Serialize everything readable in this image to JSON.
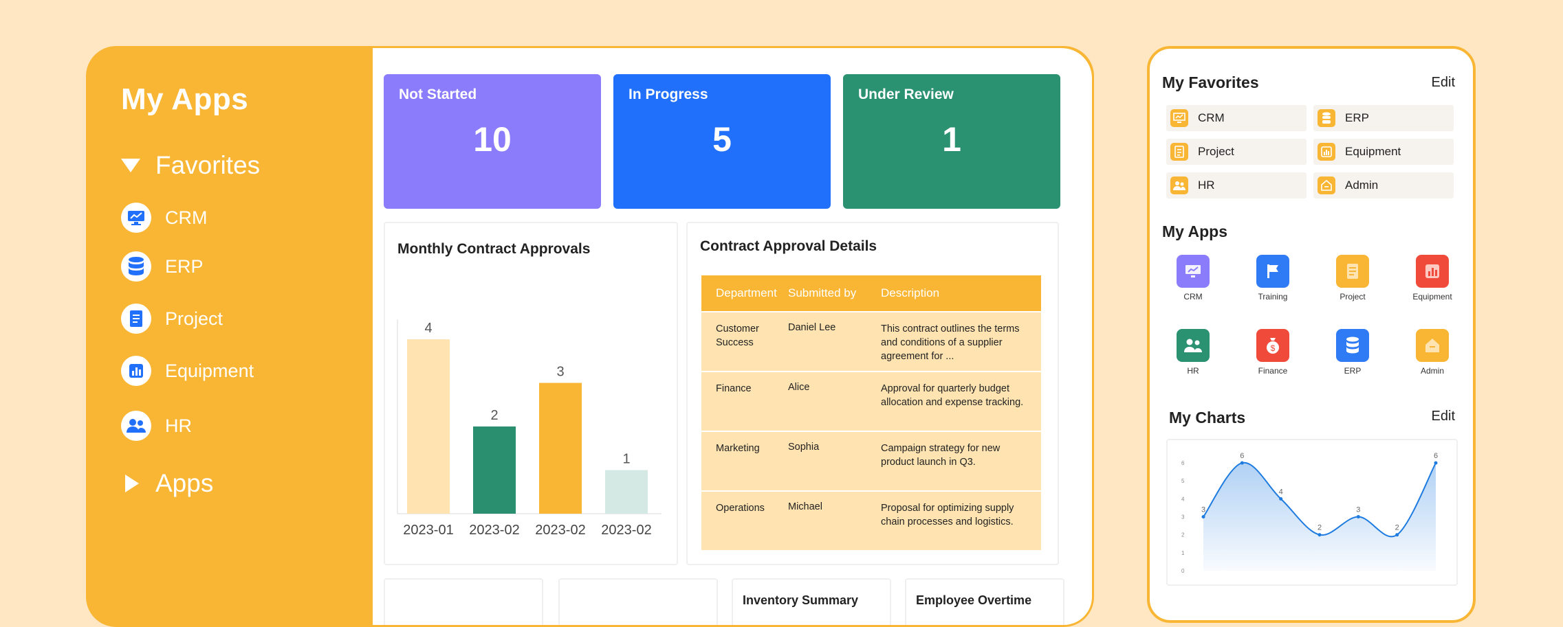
{
  "sidebar": {
    "title": "My Apps",
    "favorites_label": "Favorites",
    "apps_label": "Apps",
    "items": [
      {
        "label": "CRM",
        "icon": "monitor-chart-icon"
      },
      {
        "label": "ERP",
        "icon": "database-icon"
      },
      {
        "label": "Project",
        "icon": "document-icon"
      },
      {
        "label": "Equipment",
        "icon": "bar-chart-icon"
      },
      {
        "label": "HR",
        "icon": "users-icon"
      }
    ]
  },
  "status_cards": [
    {
      "label": "Not Started",
      "value": "10",
      "color": "#8B7CFB"
    },
    {
      "label": "In Progress",
      "value": "5",
      "color": "#2070FB"
    },
    {
      "label": "Under Review",
      "value": "1",
      "color": "#2A9270"
    }
  ],
  "monthly_chart": {
    "title": "Monthly Contract Approvals",
    "chart_data": {
      "type": "bar",
      "categories": [
        "2023-01",
        "2023-02",
        "2023-02",
        "2023-02"
      ],
      "values": [
        4,
        2,
        3,
        1
      ],
      "colors": [
        "#FFE3B0",
        "#2A8F6E",
        "#F9B634",
        "#D4E9E3"
      ],
      "title": "Monthly Contract Approvals",
      "xlabel": "",
      "ylabel": "",
      "ylim": [
        0,
        4.3
      ]
    }
  },
  "contract_table": {
    "title": "Contract Approval Details",
    "headers": [
      "Department",
      "Submitted by",
      "Description"
    ],
    "rows": [
      {
        "department": "Customer Success",
        "submitted_by": "Daniel Lee",
        "description": "This contract outlines the terms and conditions of a supplier agreement for ..."
      },
      {
        "department": "Finance",
        "submitted_by": "Alice",
        "description": "Approval for quarterly budget allocation and expense tracking."
      },
      {
        "department": "Marketing",
        "submitted_by": "Sophia",
        "description": "Campaign strategy for new product launch in Q3."
      },
      {
        "department": "Operations",
        "submitted_by": "Michael",
        "description": "Proposal for optimizing supply chain processes and logistics."
      }
    ]
  },
  "bottom_panels": [
    "",
    "",
    "Inventory Summary",
    "Employee Overtime"
  ],
  "phone": {
    "favorites_title": "My Favorites",
    "favorites_edit": "Edit",
    "favorites": [
      {
        "label": "CRM",
        "icon": "monitor-chart-icon"
      },
      {
        "label": "ERP",
        "icon": "database-icon"
      },
      {
        "label": "Project",
        "icon": "document-icon"
      },
      {
        "label": "Equipment",
        "icon": "bar-chart-icon"
      },
      {
        "label": "HR",
        "icon": "users-icon"
      },
      {
        "label": "Admin",
        "icon": "house-icon"
      }
    ],
    "apps_title": "My Apps",
    "apps": [
      {
        "label": "CRM",
        "icon": "monitor-chart-icon",
        "color": "#8B7CFB"
      },
      {
        "label": "Training",
        "icon": "flag-icon",
        "color": "#2F7BF6"
      },
      {
        "label": "Project",
        "icon": "document-icon",
        "color": "#F9B634"
      },
      {
        "label": "Equipment",
        "icon": "bar-chart-icon",
        "color": "#F04A3A"
      },
      {
        "label": "HR",
        "icon": "users-icon",
        "color": "#2A9270"
      },
      {
        "label": "Finance",
        "icon": "money-bag-icon",
        "color": "#F04A3A"
      },
      {
        "label": "ERP",
        "icon": "database-icon",
        "color": "#2F7BF6"
      },
      {
        "label": "Admin",
        "icon": "house-icon",
        "color": "#F9B634"
      }
    ],
    "charts_title": "My Charts",
    "charts_edit": "Edit",
    "chart_data": {
      "type": "area",
      "x": [
        1,
        2,
        3,
        4,
        5,
        6,
        7
      ],
      "values": [
        3,
        6,
        4,
        2,
        3,
        2,
        6
      ],
      "yticks": [
        "0",
        "1",
        "2",
        "3",
        "4",
        "5",
        "6"
      ],
      "ylim": [
        0,
        6.5
      ],
      "color": "#1E7BE0"
    }
  }
}
